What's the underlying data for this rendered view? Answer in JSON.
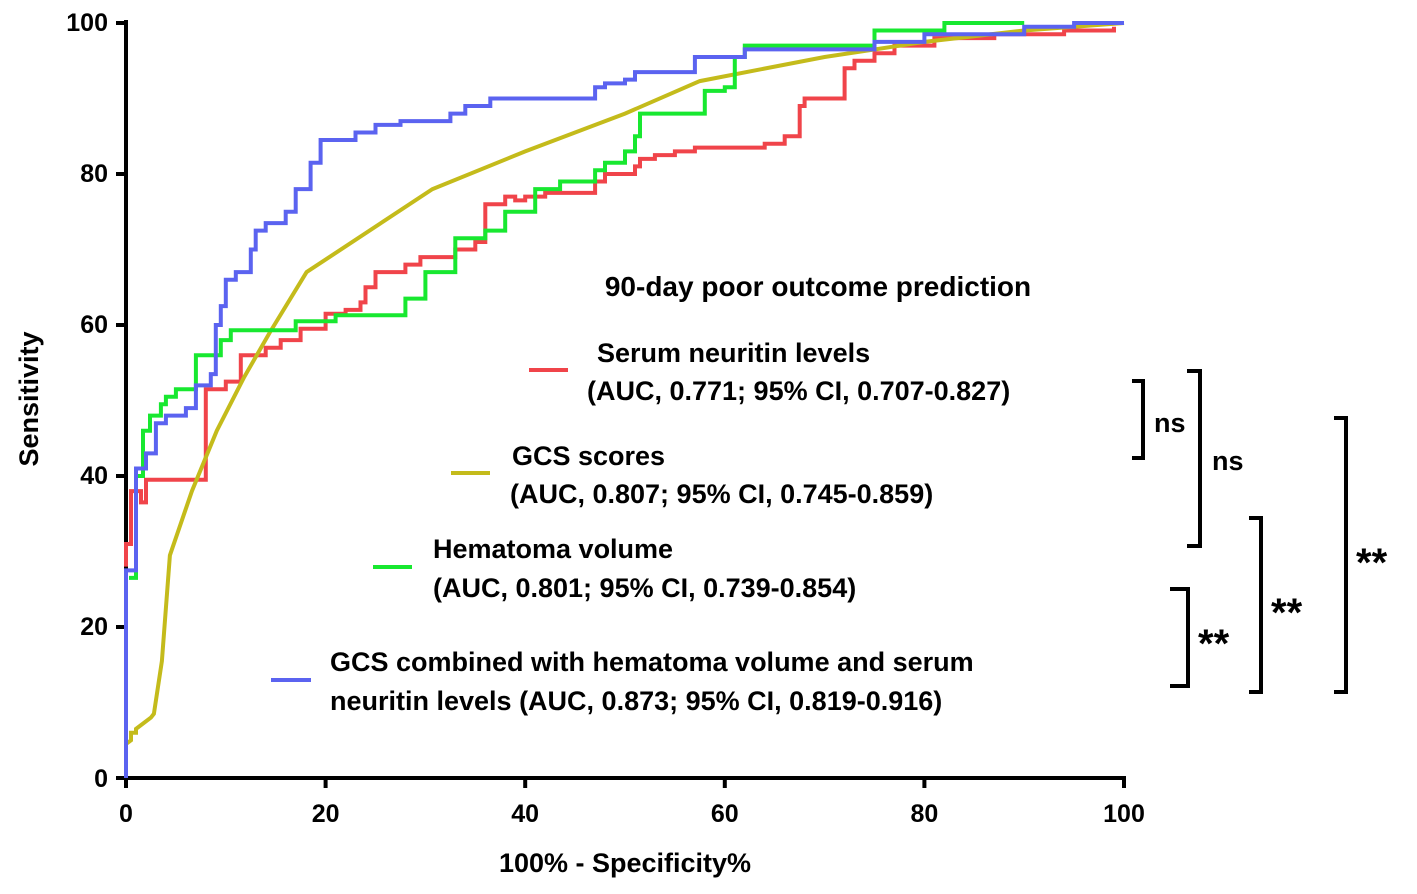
{
  "chart_data": {
    "type": "line",
    "title": "",
    "subtitle": "90-day poor outcome prediction",
    "subtitle_color": "#b21fd0",
    "xlabel": "100% - Specificity%",
    "ylabel": "Sensitivity",
    "xlim": [
      0,
      100
    ],
    "ylim": [
      0,
      100
    ],
    "x_ticks": [
      0,
      20,
      40,
      60,
      80,
      100
    ],
    "y_ticks": [
      0,
      20,
      40,
      60,
      80,
      100
    ],
    "x_tick_labels": [
      "0",
      "20",
      "40",
      "60",
      "80",
      "100"
    ],
    "y_tick_labels": [
      "0",
      "20",
      "40",
      "60",
      "80",
      "100"
    ],
    "series": [
      {
        "name": "Serum neuritin levels",
        "detail": "(AUC, 0.771; 95% CI, 0.707-0.827)",
        "color": "#f0444a",
        "points": [
          [
            0,
            28
          ],
          [
            0,
            31
          ],
          [
            0.5,
            31
          ],
          [
            0.5,
            38
          ],
          [
            1.5,
            38
          ],
          [
            1.5,
            36.5
          ],
          [
            2,
            36.5
          ],
          [
            2,
            39.5
          ],
          [
            8,
            39.5
          ],
          [
            8,
            51.5
          ],
          [
            10,
            51.5
          ],
          [
            10,
            52.5
          ],
          [
            11.5,
            52.5
          ],
          [
            11.5,
            56
          ],
          [
            14,
            56
          ],
          [
            14,
            57
          ],
          [
            15.5,
            57
          ],
          [
            15.5,
            58
          ],
          [
            17.5,
            58
          ],
          [
            17.5,
            59.5
          ],
          [
            20,
            59.5
          ],
          [
            20,
            61.5
          ],
          [
            22,
            61.5
          ],
          [
            22,
            62
          ],
          [
            23.5,
            62
          ],
          [
            23.5,
            63
          ],
          [
            24,
            63
          ],
          [
            24,
            65
          ],
          [
            25,
            65
          ],
          [
            25,
            67
          ],
          [
            28,
            67
          ],
          [
            28,
            68
          ],
          [
            29.5,
            68
          ],
          [
            29.5,
            69
          ],
          [
            33,
            69
          ],
          [
            33,
            70
          ],
          [
            35,
            70
          ],
          [
            35,
            71
          ],
          [
            36,
            71
          ],
          [
            36,
            76
          ],
          [
            38,
            76
          ],
          [
            38,
            77
          ],
          [
            39,
            77
          ],
          [
            39,
            76.5
          ],
          [
            40,
            76.5
          ],
          [
            40,
            77
          ],
          [
            42,
            77
          ],
          [
            42,
            77.5
          ],
          [
            47,
            77.5
          ],
          [
            47,
            79
          ],
          [
            48,
            79
          ],
          [
            48,
            80
          ],
          [
            51,
            80
          ],
          [
            51,
            81
          ],
          [
            51.5,
            81
          ],
          [
            51.5,
            82
          ],
          [
            53,
            82
          ],
          [
            53,
            82.5
          ],
          [
            55,
            82.5
          ],
          [
            55,
            83
          ],
          [
            57,
            83
          ],
          [
            57,
            83.5
          ],
          [
            64,
            83.5
          ],
          [
            64,
            84
          ],
          [
            66,
            84
          ],
          [
            66,
            85
          ],
          [
            67.5,
            85
          ],
          [
            67.5,
            89
          ],
          [
            68,
            89
          ],
          [
            68,
            90
          ],
          [
            72,
            90
          ],
          [
            72,
            94
          ],
          [
            73,
            94
          ],
          [
            73,
            95
          ],
          [
            75,
            95
          ],
          [
            75,
            96
          ],
          [
            77,
            96
          ],
          [
            77,
            97
          ],
          [
            81,
            97
          ],
          [
            81,
            98
          ],
          [
            87,
            98
          ],
          [
            87,
            98.5
          ],
          [
            94,
            98.5
          ],
          [
            94,
            99
          ],
          [
            99,
            99
          ],
          [
            99,
            99.5
          ]
        ]
      },
      {
        "name": "GCS scores",
        "detail": "(AUC, 0.807; 95% CI, 0.745-0.859)",
        "color": "#c4bb1b",
        "points": [
          [
            0,
            4.5
          ],
          [
            0.5,
            5
          ],
          [
            0.5,
            6
          ],
          [
            1,
            6
          ],
          [
            1,
            6.5
          ],
          [
            2.5,
            8
          ],
          [
            2.8,
            8.5
          ],
          [
            3.2,
            12
          ],
          [
            3.6,
            15.5
          ],
          [
            4.4,
            29.5
          ],
          [
            6.6,
            38
          ],
          [
            9.1,
            46
          ],
          [
            11.8,
            53
          ],
          [
            14.4,
            59
          ],
          [
            18.1,
            67
          ],
          [
            30.7,
            78
          ],
          [
            40,
            83
          ],
          [
            50,
            88
          ],
          [
            57.5,
            92.3
          ],
          [
            70,
            95.5
          ],
          [
            80,
            97.5
          ],
          [
            90,
            99
          ],
          [
            100,
            100
          ]
        ]
      },
      {
        "name": "Hematoma volume",
        "detail": "(AUC, 0.801; 95% CI, 0.739-0.854)",
        "color": "#18e830",
        "points": [
          [
            0.3,
            26.5
          ],
          [
            1,
            26.5
          ],
          [
            1,
            40
          ],
          [
            1.7,
            40
          ],
          [
            1.7,
            46
          ],
          [
            2.4,
            46
          ],
          [
            2.4,
            48
          ],
          [
            3.5,
            48
          ],
          [
            3.5,
            49.5
          ],
          [
            4,
            49.5
          ],
          [
            4,
            50.5
          ],
          [
            5,
            50.5
          ],
          [
            5,
            51.5
          ],
          [
            7,
            51.5
          ],
          [
            7,
            56
          ],
          [
            9.5,
            56
          ],
          [
            9.5,
            58
          ],
          [
            10.5,
            58
          ],
          [
            10.5,
            59.3
          ],
          [
            17,
            59.3
          ],
          [
            17,
            60.5
          ],
          [
            21,
            60.5
          ],
          [
            21,
            61.3
          ],
          [
            28,
            61.3
          ],
          [
            28,
            63.5
          ],
          [
            30,
            63.5
          ],
          [
            30,
            67
          ],
          [
            33,
            67
          ],
          [
            33,
            71.5
          ],
          [
            36,
            71.5
          ],
          [
            36,
            72.5
          ],
          [
            38,
            72.5
          ],
          [
            38,
            75
          ],
          [
            41,
            75
          ],
          [
            41,
            78
          ],
          [
            43.5,
            78
          ],
          [
            43.5,
            79
          ],
          [
            47,
            79
          ],
          [
            47,
            80.5
          ],
          [
            48,
            80.5
          ],
          [
            48,
            81.5
          ],
          [
            50,
            81.5
          ],
          [
            50,
            83
          ],
          [
            51,
            83
          ],
          [
            51,
            85
          ],
          [
            51.5,
            85
          ],
          [
            51.5,
            88
          ],
          [
            58,
            88
          ],
          [
            58,
            91
          ],
          [
            60,
            91
          ],
          [
            60,
            91.5
          ],
          [
            61,
            91.5
          ],
          [
            61,
            95.5
          ],
          [
            62,
            95.5
          ],
          [
            62,
            97
          ],
          [
            75,
            97
          ],
          [
            75,
            99
          ],
          [
            82,
            99
          ],
          [
            82,
            100
          ],
          [
            90,
            100
          ]
        ]
      },
      {
        "name": "GCS combined with hematoma volume and serum neuritin levels",
        "detail": "(AUC, 0.873; 95% CI, 0.819-0.916)",
        "legend_line1": "GCS combined with hematoma volume and serum",
        "legend_line2": "neuritin levels (AUC, 0.873; 95% CI, 0.819-0.916)",
        "color": "#5b63f0",
        "points": [
          [
            0,
            0
          ],
          [
            0,
            27.5
          ],
          [
            1,
            27.5
          ],
          [
            1,
            41
          ],
          [
            2,
            41
          ],
          [
            2,
            43
          ],
          [
            3,
            43
          ],
          [
            3,
            47
          ],
          [
            4,
            47
          ],
          [
            4,
            48
          ],
          [
            6,
            48
          ],
          [
            6,
            49
          ],
          [
            7,
            49
          ],
          [
            7,
            52
          ],
          [
            8.5,
            52
          ],
          [
            8.5,
            53.5
          ],
          [
            9,
            53.5
          ],
          [
            9,
            60
          ],
          [
            9.5,
            60
          ],
          [
            9.5,
            62.5
          ],
          [
            10,
            62.5
          ],
          [
            10,
            66
          ],
          [
            11,
            66
          ],
          [
            11,
            67
          ],
          [
            12.5,
            67
          ],
          [
            12.5,
            70
          ],
          [
            13,
            70
          ],
          [
            13,
            72.5
          ],
          [
            14,
            72.5
          ],
          [
            14,
            73.5
          ],
          [
            16,
            73.5
          ],
          [
            16,
            75
          ],
          [
            17,
            75
          ],
          [
            17,
            78
          ],
          [
            18.5,
            78
          ],
          [
            18.5,
            81.5
          ],
          [
            19.5,
            81.5
          ],
          [
            19.5,
            84.5
          ],
          [
            23,
            84.5
          ],
          [
            23,
            85.5
          ],
          [
            25,
            85.5
          ],
          [
            25,
            86.5
          ],
          [
            27.5,
            86.5
          ],
          [
            27.5,
            87
          ],
          [
            32.5,
            87
          ],
          [
            32.5,
            88
          ],
          [
            34,
            88
          ],
          [
            34,
            89
          ],
          [
            36.5,
            89
          ],
          [
            36.5,
            90
          ],
          [
            47,
            90
          ],
          [
            47,
            91.5
          ],
          [
            48,
            91.5
          ],
          [
            48,
            92
          ],
          [
            50,
            92
          ],
          [
            50,
            92.5
          ],
          [
            51,
            92.5
          ],
          [
            51,
            93.5
          ],
          [
            57,
            93.5
          ],
          [
            57,
            95.5
          ],
          [
            62,
            95.5
          ],
          [
            62,
            96.5
          ],
          [
            75,
            96.5
          ],
          [
            75,
            97.5
          ],
          [
            80,
            97.5
          ],
          [
            80,
            98.5
          ],
          [
            90,
            98.5
          ],
          [
            90,
            99.5
          ],
          [
            95,
            99.5
          ],
          [
            95,
            100
          ],
          [
            100,
            100
          ]
        ]
      }
    ],
    "significance": [
      {
        "label": "ns",
        "groups": "Serum neuritin vs GCS scores"
      },
      {
        "label": "ns",
        "groups": "Serum neuritin vs Hematoma volume"
      },
      {
        "label": "**",
        "groups": "Hematoma volume vs Combined"
      },
      {
        "label": "**",
        "groups": "GCS scores vs Combined"
      },
      {
        "label": "**",
        "groups": "Serum neuritin vs Combined"
      }
    ]
  }
}
